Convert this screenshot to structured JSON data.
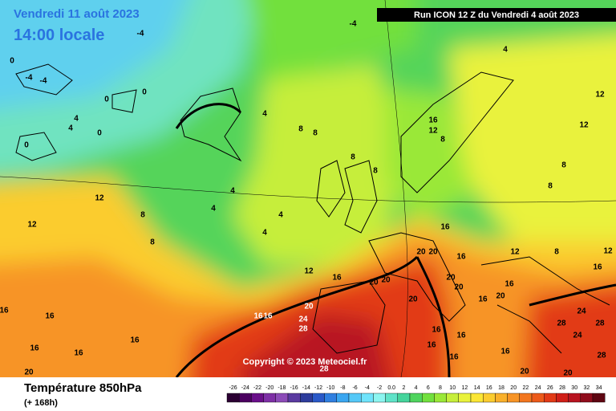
{
  "header": {
    "date": "Vendredi 11 août 2023",
    "time": "14:00 locale",
    "run": "Run ICON 12 Z du Vendredi 4 août 2023"
  },
  "copyright": "Copyright © 2023 Meteociel.fr",
  "footer": {
    "title": "Température 850hPa",
    "lead": "(+ 168h)"
  },
  "scale": {
    "ticks": [
      -26,
      -24,
      -22,
      -20,
      -18,
      -16,
      -14,
      -12,
      -10,
      -8,
      -6,
      -4,
      -2,
      {
        "value": 0,
        "label": "0.0"
      },
      2,
      4,
      6,
      8,
      10,
      12,
      14,
      16,
      18,
      20,
      22,
      24,
      26,
      28,
      30,
      32,
      34
    ],
    "colors": [
      "#2b0033",
      "#4b0060",
      "#6a0f8a",
      "#7e2fa6",
      "#8c4bb8",
      "#5a3aa0",
      "#2d3c9c",
      "#2a59c8",
      "#2f7fe0",
      "#3aa6f0",
      "#55c8f7",
      "#6fe3fb",
      "#8cf5f0",
      "#5fe3c8",
      "#45d49b",
      "#4fd45e",
      "#72e03e",
      "#9ae838",
      "#c6ee3a",
      "#e9f23c",
      "#fbe635",
      "#fbcc2f",
      "#f9b02b",
      "#f79426",
      "#f2761f",
      "#ec5a1a",
      "#e23a16",
      "#d01f18",
      "#b81420",
      "#900c1c",
      "#5e0612"
    ]
  },
  "map_labels": [
    -4,
    -4,
    -4,
    -4,
    4,
    0,
    0,
    4,
    0,
    0,
    4,
    4,
    8,
    8,
    8,
    8,
    16,
    12,
    8,
    12,
    12,
    8,
    8,
    12,
    12,
    8,
    8,
    4,
    4,
    4,
    4,
    12,
    16,
    16,
    20,
    20,
    16,
    20,
    20,
    20,
    20,
    20,
    20,
    16,
    16,
    24,
    28,
    24,
    28,
    28,
    24,
    28,
    28,
    16,
    20,
    20,
    16,
    16,
    16,
    16,
    16,
    20,
    16,
    16,
    16,
    16,
    16,
    20,
    16,
    12,
    8,
    12,
    16,
    0
  ]
}
